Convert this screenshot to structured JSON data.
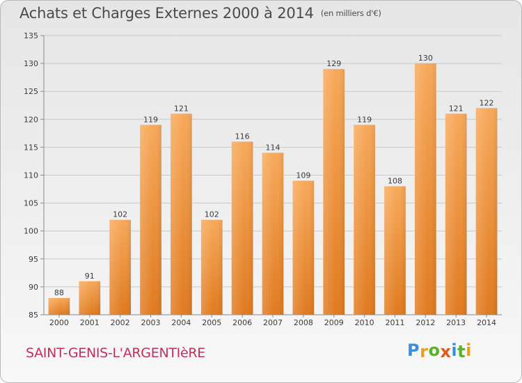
{
  "header": {
    "title": "Achats et Charges Externes 2000 à 2014",
    "subtitle": "(en milliers d'€)"
  },
  "footer": {
    "commune": "SAINT-GENIS-L'ARGENTIèRE",
    "logo_text": "Proxiti",
    "logo_letters": [
      {
        "ch": "P",
        "color": "#3a8fd6"
      },
      {
        "ch": "r",
        "color": "#e8a020"
      },
      {
        "ch": "o",
        "color": "#5cb030"
      },
      {
        "ch": "x",
        "color": "#e05a20"
      },
      {
        "ch": "i",
        "color": "#3a8fd6"
      },
      {
        "ch": "t",
        "color": "#5cb030"
      },
      {
        "ch": "i",
        "color": "#e8a020"
      }
    ]
  },
  "colors": {
    "bar_top": "#f7a95a",
    "bar_bottom": "#e07a1f",
    "grid": "#c8c8c8",
    "axis": "#8a8a8a"
  },
  "chart_data": {
    "type": "bar",
    "title": "Achats et Charges Externes 2000 à 2014",
    "subtitle": "(en milliers d'€)",
    "categories": [
      "2000",
      "2001",
      "2002",
      "2003",
      "2004",
      "2005",
      "2006",
      "2007",
      "2008",
      "2009",
      "2010",
      "2011",
      "2012",
      "2013",
      "2014"
    ],
    "values": [
      88,
      91,
      102,
      119,
      121,
      102,
      116,
      114,
      109,
      129,
      119,
      108,
      130,
      121,
      122
    ],
    "ylim": [
      85,
      135
    ],
    "yticks": [
      85,
      90,
      95,
      100,
      105,
      110,
      115,
      120,
      125,
      130,
      135
    ],
    "grid": true,
    "data_labels": true
  }
}
